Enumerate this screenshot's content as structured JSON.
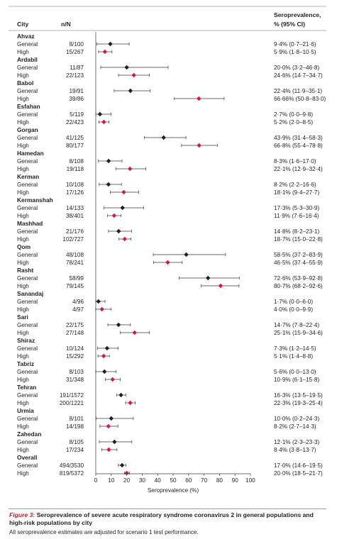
{
  "header": {
    "city": "City",
    "n_over_n": "n/N",
    "estimate_line1": "Seroprevalence,",
    "estimate_line2": "% (95% CI)"
  },
  "colors": {
    "general": "#231f20",
    "high": "#d3145a",
    "rule": "#9a9a9a",
    "whisker": "#3a3a3a"
  },
  "icons": {
    "general": "diamond-marker-icon",
    "high": "diamond-marker-icon"
  },
  "chart_data": {
    "type": "forest",
    "xlabel": "Seroprevalence (%)",
    "xlim": [
      0,
      100
    ],
    "xticks": [
      0,
      10,
      20,
      30,
      40,
      50,
      60,
      70,
      80,
      90,
      100
    ],
    "series": [
      {
        "name": "General",
        "color": "#231f20"
      },
      {
        "name": "High",
        "color": "#d3145a"
      }
    ],
    "cities": [
      {
        "name": "Ahvaz",
        "rows": [
          {
            "group": "General",
            "n": "8/100",
            "estimate": 9.4,
            "low": 0.7,
            "high": 21.6,
            "label": "9·4% (0·7–21·6)"
          },
          {
            "group": "High",
            "n": "15/267",
            "estimate": 5.9,
            "low": 1.8,
            "high": 10.5,
            "label": "5·9% (1·8–10·5)"
          }
        ]
      },
      {
        "name": "Ardabil",
        "rows": [
          {
            "group": "General",
            "n": "11/87",
            "estimate": 20.0,
            "low": 3.2,
            "high": 46.8,
            "label": "20·0% (3·2–46·8)"
          },
          {
            "group": "High",
            "n": "22/123",
            "estimate": 24.6,
            "low": 14.7,
            "high": 34.7,
            "label": "24·6% (14·7–34·7)"
          }
        ]
      },
      {
        "name": "Babol",
        "rows": [
          {
            "group": "General",
            "n": "19/91",
            "estimate": 22.4,
            "low": 11.9,
            "high": 35.1,
            "label": "22·4% (11·9–35·1)"
          },
          {
            "group": "High",
            "n": "39/86",
            "estimate": 66.66,
            "low": 50.8,
            "high": 83.0,
            "label": "66·66% (50·8–83·0)"
          }
        ]
      },
      {
        "name": "Esfahan",
        "rows": [
          {
            "group": "General",
            "n": "5/119",
            "estimate": 2.7,
            "low": 0.0,
            "high": 9.8,
            "label": "2·7% (0·0–9·8)"
          },
          {
            "group": "High",
            "n": "22/423",
            "estimate": 5.2,
            "low": 2.0,
            "high": 8.5,
            "label": "5·2% (2·0–8·5)"
          }
        ]
      },
      {
        "name": "Gorgan",
        "rows": [
          {
            "group": "General",
            "n": "41/125",
            "estimate": 43.9,
            "low": 31.4,
            "high": 58.3,
            "label": "43·9% (31·4–58·3)"
          },
          {
            "group": "High",
            "n": "80/177",
            "estimate": 66.8,
            "low": 55.4,
            "high": 78.8,
            "label": "66·8% (55·4–78·8)"
          }
        ]
      },
      {
        "name": "Hamedan",
        "rows": [
          {
            "group": "General",
            "n": "8/108",
            "estimate": 8.3,
            "low": 1.6,
            "high": 17.0,
            "label": "8·3% (1·6–17·0)"
          },
          {
            "group": "High",
            "n": "19/118",
            "estimate": 22.1,
            "low": 12.9,
            "high": 32.4,
            "label": "22·1% (12·9–32·4)"
          }
        ]
      },
      {
        "name": "Kerman",
        "rows": [
          {
            "group": "General",
            "n": "10/108",
            "estimate": 8.2,
            "low": 2.2,
            "high": 16.6,
            "label": "8·2% (2·2–16·6)"
          },
          {
            "group": "High",
            "n": "17/126",
            "estimate": 18.1,
            "low": 9.4,
            "high": 27.7,
            "label": "18·1% (9·4–27·7)"
          }
        ]
      },
      {
        "name": "Kermanshah",
        "rows": [
          {
            "group": "General",
            "n": "14/133",
            "estimate": 17.3,
            "low": 5.3,
            "high": 30.9,
            "label": "17·3% (5·3–30·9)"
          },
          {
            "group": "High",
            "n": "38/401",
            "estimate": 11.9,
            "low": 7.6,
            "high": 16.4,
            "label": "11·9% (7·6–16·4)"
          }
        ]
      },
      {
        "name": "Mashhad",
        "rows": [
          {
            "group": "General",
            "n": "21/176",
            "estimate": 14.8,
            "low": 8.2,
            "high": 23.1,
            "label": "14·8% (8·2–23·1)"
          },
          {
            "group": "High",
            "n": "102/727",
            "estimate": 18.7,
            "low": 15.0,
            "high": 22.8,
            "label": "18·7% (15·0–22·8)"
          }
        ]
      },
      {
        "name": "Qom",
        "rows": [
          {
            "group": "General",
            "n": "48/108",
            "estimate": 58.5,
            "low": 37.2,
            "high": 83.9,
            "label": "58·5% (37·2–83·9)"
          },
          {
            "group": "High",
            "n": "78/241",
            "estimate": 46.5,
            "low": 37.4,
            "high": 55.9,
            "label": "46·5% (37·4–55·9)"
          }
        ]
      },
      {
        "name": "Rasht",
        "rows": [
          {
            "group": "General",
            "n": "58/99",
            "estimate": 72.6,
            "low": 53.9,
            "high": 92.8,
            "label": "72·6% (53·9–92·8)"
          },
          {
            "group": "High",
            "n": "79/145",
            "estimate": 80.7,
            "low": 68.2,
            "high": 92.6,
            "label": "80·7% (68·2–92·6)"
          }
        ]
      },
      {
        "name": "Sanandaj",
        "rows": [
          {
            "group": "General",
            "n": "4/96",
            "estimate": 1.7,
            "low": 0.0,
            "high": 6.0,
            "label": "1·7% (0·0–6·0)"
          },
          {
            "group": "High",
            "n": "4/97",
            "estimate": 4.0,
            "low": 0.0,
            "high": 9.9,
            "label": "4·0% (0·0–9·9)"
          }
        ]
      },
      {
        "name": "Sari",
        "rows": [
          {
            "group": "General",
            "n": "22/175",
            "estimate": 14.7,
            "low": 7.8,
            "high": 22.4,
            "label": "14·7% (7·8–22·4)"
          },
          {
            "group": "High",
            "n": "27/148",
            "estimate": 25.1,
            "low": 15.9,
            "high": 34.6,
            "label": "25·1% (15·9–34·6)"
          }
        ]
      },
      {
        "name": "Shiraz",
        "rows": [
          {
            "group": "General",
            "n": "10/124",
            "estimate": 7.3,
            "low": 1.2,
            "high": 14.5,
            "label": "7·3% (1·2–14·5)"
          },
          {
            "group": "High",
            "n": "15/292",
            "estimate": 5.1,
            "low": 1.4,
            "high": 8.8,
            "label": "5·1% (1·4–8·8)"
          }
        ]
      },
      {
        "name": "Tabriz",
        "rows": [
          {
            "group": "General",
            "n": "8/103",
            "estimate": 5.6,
            "low": 0.0,
            "high": 13.0,
            "label": "5·6% (0·0–13·0)"
          },
          {
            "group": "High",
            "n": "31/348",
            "estimate": 10.9,
            "low": 6.1,
            "high": 15.8,
            "label": "10·9% (6·1–15·8)"
          }
        ]
      },
      {
        "name": "Tehran",
        "rows": [
          {
            "group": "General",
            "n": "191/1572",
            "estimate": 16.3,
            "low": 13.5,
            "high": 19.5,
            "label": "16·3% (13·5–19·5)"
          },
          {
            "group": "High",
            "n": "200/1221",
            "estimate": 22.3,
            "low": 19.3,
            "high": 25.4,
            "label": "22·3% (19·3–25·4)"
          }
        ]
      },
      {
        "name": "Urmia",
        "rows": [
          {
            "group": "General",
            "n": "8/101",
            "estimate": 10.0,
            "low": 0.2,
            "high": 24.3,
            "label": "10·0% (0·2–24·3)"
          },
          {
            "group": "High",
            "n": "14/198",
            "estimate": 8.2,
            "low": 2.7,
            "high": 14.3,
            "label": "8·2% (2·7–14·3)"
          }
        ]
      },
      {
        "name": "Zahedan",
        "rows": [
          {
            "group": "General",
            "n": "8/105",
            "estimate": 12.1,
            "low": 2.3,
            "high": 23.3,
            "label": "12·1% (2·3–23·3)"
          },
          {
            "group": "High",
            "n": "17/234",
            "estimate": 8.4,
            "low": 3.8,
            "high": 13.7,
            "label": "8·4% (3·8–13·7)"
          }
        ]
      },
      {
        "name": "Overall",
        "rows": [
          {
            "group": "General",
            "n": "494/3530",
            "estimate": 17.0,
            "low": 14.6,
            "high": 19.5,
            "label": "17·0% (14·6–19·5)"
          },
          {
            "group": "High",
            "n": "819/5372",
            "estimate": 20.0,
            "low": 18.5,
            "high": 21.7,
            "label": "20·0% (18·5–21·7)"
          }
        ]
      }
    ]
  },
  "caption": {
    "figure_label": "Figure 3:",
    "title": "Seroprevalence of severe acute respiratory syndrome coronavirus 2 in general populations and high-risk populations by city",
    "footnote": "All seroprevalence estimates are adjusted for scenario 1 test performance."
  }
}
